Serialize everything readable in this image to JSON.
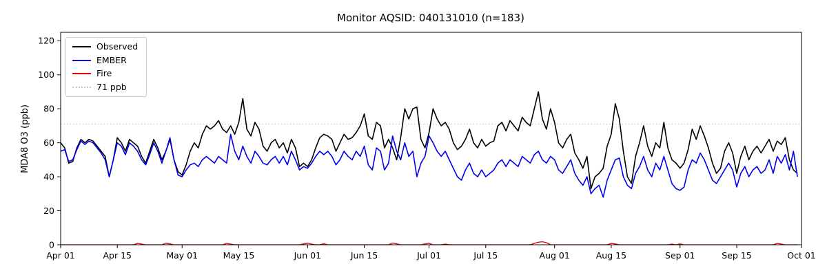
{
  "chart_data": {
    "type": "line",
    "title": "Monitor AQSID: 040131010 (n=183)",
    "xlabel": "",
    "ylabel": "MDA8 O3 (ppb)",
    "ylim": [
      0,
      125
    ],
    "y_ticks": [
      0,
      20,
      40,
      60,
      80,
      100,
      120
    ],
    "x_tick_labels": [
      "Apr 01",
      "Apr 15",
      "May 01",
      "May 15",
      "Jun 01",
      "Jun 15",
      "Jul 01",
      "Jul 15",
      "Aug 01",
      "Aug 15",
      "Sep 01",
      "Sep 15",
      "Oct 01"
    ],
    "x_tick_days": [
      0,
      14,
      30,
      44,
      61,
      75,
      91,
      105,
      122,
      136,
      153,
      167,
      183
    ],
    "x_total_days": 183,
    "grid": false,
    "legend_position": "upper left",
    "threshold": {
      "label": "71 ppb",
      "value": 71,
      "color": "#c9c9c9",
      "style": "dotted"
    },
    "legend": [
      {
        "label": "Observed",
        "color": "#000000",
        "style": "solid"
      },
      {
        "label": "EMBER",
        "color": "#0000ee",
        "style": "solid"
      },
      {
        "label": "Fire",
        "color": "#e00000",
        "style": "solid"
      },
      {
        "label": "71 ppb",
        "color": "#c9c9c9",
        "style": "dotted"
      }
    ],
    "series": [
      {
        "name": "Observed",
        "color": "#000000",
        "width": 1.6,
        "values": [
          60,
          57,
          48,
          49,
          57,
          62,
          60,
          62,
          61,
          58,
          55,
          52,
          40,
          50,
          63,
          60,
          55,
          62,
          60,
          58,
          52,
          48,
          55,
          62,
          57,
          50,
          55,
          62,
          50,
          43,
          41,
          47,
          55,
          60,
          57,
          65,
          70,
          68,
          70,
          73,
          68,
          66,
          70,
          65,
          72,
          86,
          68,
          64,
          72,
          68,
          58,
          55,
          60,
          62,
          57,
          60,
          54,
          62,
          57,
          46,
          48,
          46,
          50,
          57,
          63,
          65,
          64,
          62,
          55,
          60,
          65,
          62,
          63,
          66,
          70,
          77,
          64,
          62,
          72,
          70,
          57,
          62,
          57,
          50,
          63,
          80,
          74,
          80,
          81,
          62,
          57,
          66,
          80,
          74,
          70,
          72,
          68,
          60,
          56,
          58,
          62,
          68,
          60,
          57,
          62,
          58,
          60,
          61,
          70,
          72,
          67,
          73,
          70,
          67,
          75,
          72,
          70,
          80,
          90,
          74,
          68,
          80,
          72,
          60,
          57,
          62,
          65,
          54,
          50,
          45,
          52,
          33,
          40,
          42,
          45,
          58,
          65,
          83,
          74,
          55,
          40,
          36,
          52,
          60,
          70,
          58,
          52,
          60,
          57,
          72,
          57,
          50,
          48,
          45,
          48,
          56,
          68,
          62,
          70,
          64,
          57,
          48,
          42,
          45,
          55,
          60,
          54,
          42,
          52,
          58,
          50,
          55,
          58,
          54,
          58,
          62,
          55,
          61,
          59,
          63,
          50,
          44,
          42
        ]
      },
      {
        "name": "EMBER",
        "color": "#0000ee",
        "width": 1.6,
        "values": [
          55,
          56,
          49,
          50,
          56,
          61,
          59,
          61,
          60,
          57,
          54,
          50,
          40,
          50,
          60,
          58,
          53,
          60,
          58,
          55,
          50,
          47,
          53,
          60,
          55,
          48,
          55,
          63,
          50,
          41,
          40,
          44,
          47,
          48,
          46,
          50,
          52,
          50,
          48,
          52,
          50,
          48,
          65,
          55,
          50,
          58,
          52,
          48,
          55,
          52,
          48,
          47,
          50,
          52,
          48,
          52,
          47,
          55,
          50,
          44,
          46,
          45,
          48,
          52,
          55,
          53,
          55,
          52,
          47,
          50,
          55,
          52,
          50,
          55,
          52,
          58,
          47,
          44,
          57,
          55,
          44,
          48,
          64,
          55,
          50,
          60,
          52,
          55,
          40,
          48,
          52,
          64,
          60,
          55,
          52,
          55,
          50,
          45,
          40,
          38,
          44,
          48,
          42,
          40,
          44,
          40,
          42,
          44,
          48,
          50,
          46,
          50,
          48,
          46,
          52,
          50,
          48,
          53,
          55,
          50,
          48,
          52,
          50,
          44,
          42,
          46,
          50,
          42,
          38,
          35,
          40,
          30,
          33,
          35,
          28,
          38,
          44,
          50,
          51,
          40,
          35,
          33,
          42,
          46,
          52,
          44,
          40,
          48,
          44,
          52,
          44,
          36,
          33,
          32,
          34,
          44,
          50,
          48,
          54,
          50,
          44,
          38,
          36,
          40,
          44,
          48,
          44,
          34,
          42,
          46,
          40,
          44,
          46,
          42,
          44,
          50,
          42,
          52,
          48,
          53,
          44,
          55,
          40
        ]
      },
      {
        "name": "Fire",
        "color": "#e00000",
        "width": 1.3,
        "values": [
          0,
          0,
          0,
          0,
          0,
          0,
          0,
          0,
          0,
          0,
          0,
          0,
          0,
          0,
          0,
          0,
          0,
          0,
          0,
          0.8,
          0.4,
          0,
          0,
          0,
          0,
          0,
          0.9,
          0.5,
          0,
          0,
          0,
          0,
          0,
          0,
          0,
          0,
          0,
          0,
          0,
          0,
          0,
          0.8,
          0.4,
          0,
          0,
          0,
          0,
          0,
          0,
          0,
          0,
          0,
          0,
          0,
          0,
          0,
          0,
          0,
          0,
          0,
          0.5,
          0.9,
          0.4,
          0,
          0,
          0.6,
          0,
          0,
          0,
          0,
          0,
          0,
          0,
          0,
          0,
          0,
          0,
          0,
          0,
          0,
          0,
          0,
          1.0,
          0.5,
          0,
          0,
          0,
          0,
          0,
          0,
          0.5,
          0.8,
          0,
          0,
          0,
          0.4,
          0,
          0,
          0,
          0,
          0,
          0,
          0,
          0,
          0,
          0,
          0,
          0,
          0,
          0,
          0,
          0,
          0,
          0,
          0,
          0,
          0,
          0.8,
          1.5,
          1.8,
          1.2,
          0,
          0,
          0,
          0,
          0,
          0,
          0,
          0,
          0,
          0,
          0,
          0,
          0,
          0,
          0,
          0.8,
          0.5,
          0,
          0,
          0,
          0,
          0,
          0,
          0,
          0,
          0,
          0,
          0,
          0,
          0,
          0.4,
          0,
          0.5,
          0,
          0,
          0,
          0,
          0,
          0,
          0,
          0,
          0,
          0,
          0,
          0,
          0,
          0,
          0,
          0,
          0,
          0,
          0,
          0,
          0,
          0,
          0,
          0.8,
          0.4,
          0,
          0,
          0,
          0
        ]
      }
    ]
  }
}
